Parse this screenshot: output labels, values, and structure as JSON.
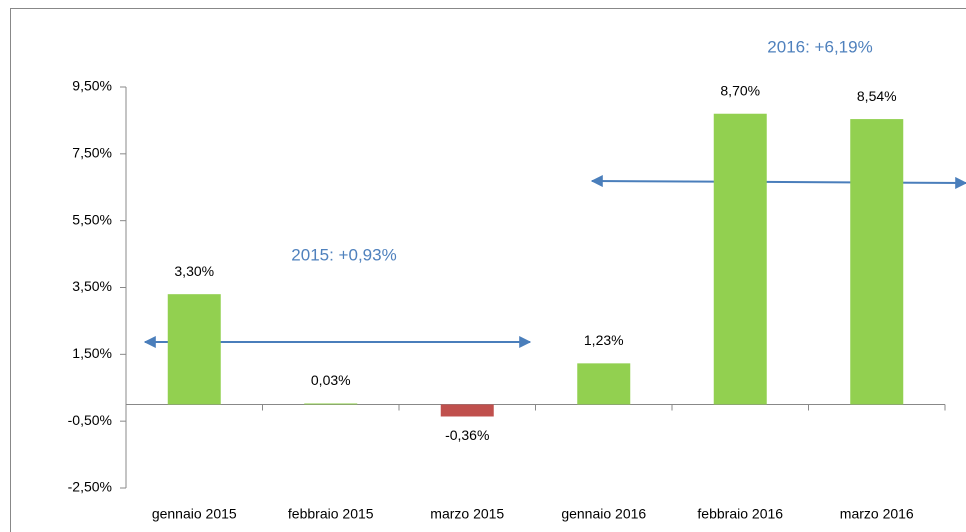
{
  "chart_data": {
    "type": "bar",
    "categories": [
      "gennaio 2015",
      "febbraio 2015",
      "marzo 2015",
      "gennaio 2016",
      "febbraio 2016",
      "marzo 2016"
    ],
    "values": [
      3.3,
      0.03,
      -0.36,
      1.23,
      8.7,
      8.54
    ],
    "value_labels": [
      "3,30%",
      "0,03%",
      "-0,36%",
      "1,23%",
      "8,70%",
      "8,54%"
    ],
    "colors": [
      "#92d050",
      "#92d050",
      "#c0504d",
      "#92d050",
      "#92d050",
      "#92d050"
    ],
    "ylim": [
      -2.5,
      9.5
    ],
    "yticks": [
      {
        "value": -2.5,
        "label": "-2,50%"
      },
      {
        "value": -0.5,
        "label": "-0,50%"
      },
      {
        "value": 1.5,
        "label": "1,50%"
      },
      {
        "value": 3.5,
        "label": "3,50%"
      },
      {
        "value": 5.5,
        "label": "5,50%"
      },
      {
        "value": 7.5,
        "label": "7,50%"
      },
      {
        "value": 9.5,
        "label": "9,50%"
      }
    ],
    "grid": false,
    "annotations": [
      "2015: +0,93%",
      "2016: +6,19%"
    ]
  }
}
